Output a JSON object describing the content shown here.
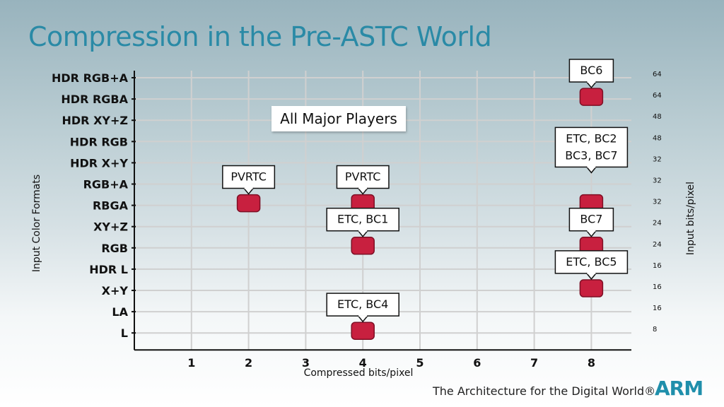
{
  "slide": {
    "title": "Compression in the Pre-ASTC World",
    "banner": "All Major Players",
    "footer": "The Architecture for the Digital World®",
    "logo": "ARM"
  },
  "chart_data": {
    "type": "scatter",
    "title": "",
    "xlabel": "Compressed bits/pixel",
    "ylabel": "Input Color Formats",
    "y2label": "Input bits/pixel",
    "x_ticks": [
      "1",
      "2",
      "3",
      "4",
      "5",
      "6",
      "7",
      "8"
    ],
    "xlim": [
      0,
      8.7
    ],
    "grid": true,
    "categories": [
      "HDR RGB+A",
      "HDR RGBA",
      "HDR XY+Z",
      "HDR RGB",
      "HDR X+Y",
      "RGB+A",
      "RBGA",
      "XY+Z",
      "RGB",
      "HDR L",
      "X+Y",
      "LA",
      "L"
    ],
    "input_bits": [
      "64",
      "64",
      "48",
      "48",
      "32",
      "32",
      "32",
      "24",
      "24",
      "16",
      "16",
      "16",
      "8"
    ],
    "points": [
      {
        "x": 8,
        "y": "HDR RGBA"
      },
      {
        "x": 2,
        "y": "RBGA"
      },
      {
        "x": 4,
        "y": "RBGA"
      },
      {
        "x": 8,
        "y": "RBGA"
      },
      {
        "x": 4,
        "y": "RGB"
      },
      {
        "x": 8,
        "y": "RGB"
      },
      {
        "x": 8,
        "y": "X+Y"
      },
      {
        "x": 4,
        "y": "L"
      }
    ],
    "callouts": [
      {
        "lines": [
          "BC6"
        ],
        "x": 8,
        "y": "HDR RGB+A"
      },
      {
        "lines": [
          "PVRTC"
        ],
        "x": 2,
        "y": "RGB+A"
      },
      {
        "lines": [
          "PVRTC"
        ],
        "x": 4,
        "y": "RGB+A"
      },
      {
        "lines": [
          "ETC, BC2",
          "BC3, BC7"
        ],
        "x": 8,
        "y": "HDR X+Y"
      },
      {
        "lines": [
          "ETC, BC1"
        ],
        "x": 4,
        "y": "XY+Z"
      },
      {
        "lines": [
          "BC7"
        ],
        "x": 8,
        "y": "XY+Z"
      },
      {
        "lines": [
          "ETC, BC5"
        ],
        "x": 8,
        "y": "HDR L"
      },
      {
        "lines": [
          "ETC, BC4"
        ],
        "x": 4,
        "y": "LA"
      }
    ],
    "colors": {
      "marker": "#c8203f",
      "grid": "#d0d0d0",
      "axis": "#111111"
    }
  }
}
